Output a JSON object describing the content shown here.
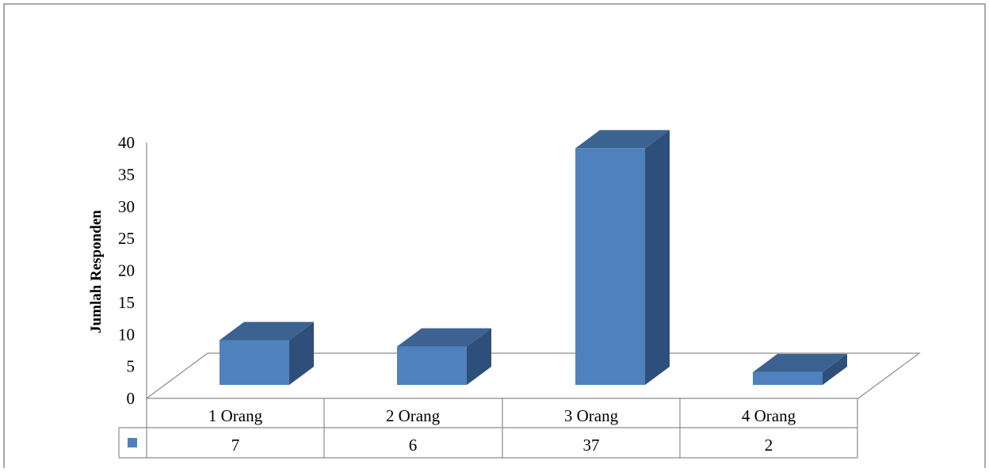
{
  "chart_data": {
    "type": "bar",
    "categories": [
      "1 Orang",
      "2 Orang",
      "3 Orang",
      "4 Orang"
    ],
    "values": [
      7,
      6,
      37,
      2
    ],
    "title": "",
    "xlabel": "",
    "ylabel": "Jumlah Responden",
    "ylim": [
      0,
      40
    ],
    "yticks": [
      "0",
      "5",
      "10",
      "15",
      "20",
      "25",
      "30",
      "35",
      "40"
    ],
    "grid": false,
    "legend": "data-table",
    "style": "3d-column",
    "series": [
      {
        "values": [
          7,
          6,
          37,
          2
        ],
        "color": "#4f81bd"
      }
    ],
    "colors": {
      "front": "#4f81bd",
      "side": "#2e4f7a",
      "top": "#3c6291",
      "legend_key": "#4f81bd"
    }
  }
}
